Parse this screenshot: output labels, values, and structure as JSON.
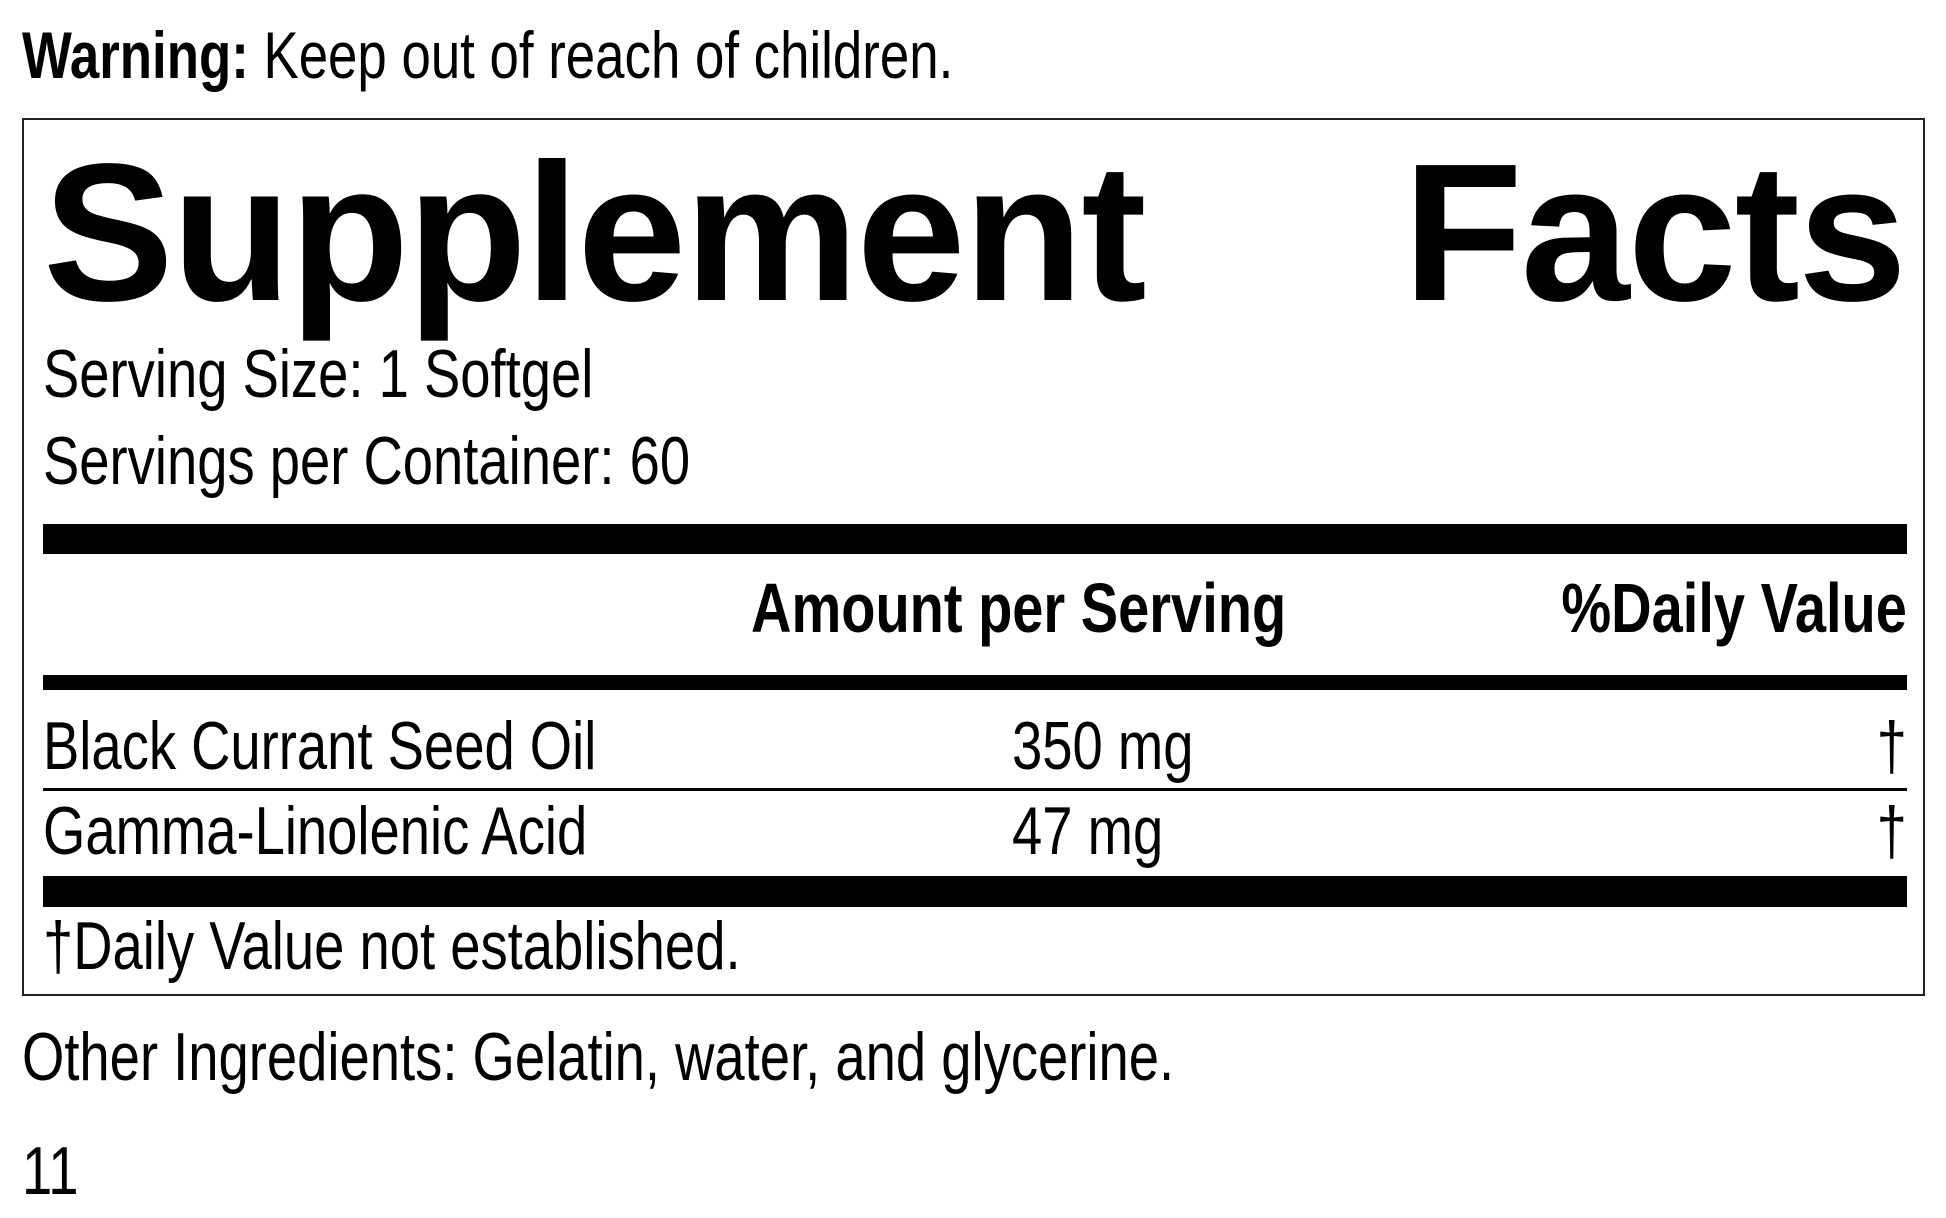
{
  "warning": {
    "label": "Warning:",
    "text": "Keep out of reach of children."
  },
  "facts": {
    "title_word1": "Supplement",
    "title_word2": "Facts",
    "serving_size": "Serving Size: 1 Softgel",
    "servings_per_container": "Servings per Container: 60",
    "header": {
      "amount": "Amount per Serving",
      "daily_value": "%Daily Value"
    },
    "rows": [
      {
        "name": "Black Currant Seed Oil",
        "amount": "350 mg",
        "dv": "†"
      },
      {
        "name": "Gamma-Linolenic Acid",
        "amount": "47 mg",
        "dv": "†"
      }
    ],
    "footnote": "†Daily Value not established."
  },
  "other_ingredients": "Other Ingredients: Gelatin, water, and glycerine.",
  "page_number": "11"
}
